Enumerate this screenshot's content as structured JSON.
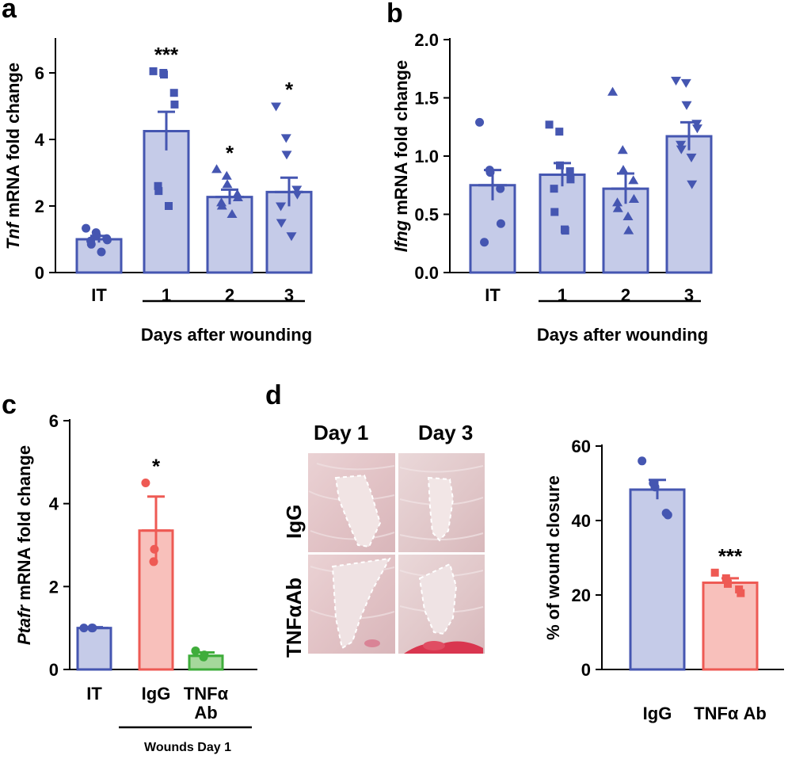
{
  "chart_data": [
    {
      "panel": "a",
      "type": "bar",
      "ylabel_italic": "Tnf",
      "ylabel_rest": " mRNA fold change",
      "categories": [
        "IT",
        "1",
        "2",
        "3"
      ],
      "values": [
        1.0,
        4.25,
        2.27,
        2.42
      ],
      "errors": [
        0.1,
        0.58,
        0.22,
        0.43
      ],
      "points": [
        [
          1.33,
          1.2,
          1.12,
          1.02,
          0.98,
          0.95,
          0.85,
          0.62
        ],
        [
          6.05,
          6.0,
          5.95,
          5.4,
          5.05,
          2.6,
          2.45,
          2.0
        ],
        [
          3.1,
          2.9,
          2.65,
          2.35,
          2.25,
          2.1,
          2.0,
          1.75
        ],
        [
          5.0,
          4.05,
          3.55,
          2.5,
          2.35,
          2.0,
          1.5,
          1.1
        ]
      ],
      "markers": [
        "circle",
        "square",
        "triangle",
        "tri-down"
      ],
      "annotations": [
        "",
        "***",
        "*",
        "*"
      ],
      "yticks": [
        "0",
        "2",
        "4",
        "6"
      ],
      "ylim": [
        0,
        7
      ],
      "group_label": "Days after wounding",
      "color": "#4556b1",
      "fill": "#c5cbe8"
    },
    {
      "panel": "b",
      "type": "bar",
      "ylabel_italic": "Ifng",
      "ylabel_rest": " mRNA fold change",
      "categories": [
        "IT",
        "1",
        "2",
        "3"
      ],
      "values": [
        0.75,
        0.84,
        0.72,
        1.17
      ],
      "errors": [
        0.13,
        0.1,
        0.13,
        0.12
      ],
      "points": [
        [
          1.29,
          0.88,
          0.86,
          0.72,
          0.42,
          0.26
        ],
        [
          1.27,
          1.21,
          0.92,
          0.87,
          0.8,
          0.72,
          0.52,
          0.37,
          0.36
        ],
        [
          1.55,
          1.05,
          0.88,
          0.79,
          0.63,
          0.6,
          0.55,
          0.48,
          0.36
        ],
        [
          1.65,
          1.63,
          1.44,
          1.28,
          1.24,
          1.1,
          1.06,
          0.99,
          0.76
        ]
      ],
      "markers": [
        "circle",
        "square",
        "triangle",
        "tri-down"
      ],
      "annotations": [
        "",
        "",
        "",
        ""
      ],
      "yticks": [
        "0.0",
        "0.5",
        "1.0",
        "1.5",
        "2.0"
      ],
      "ylim": [
        0,
        2
      ],
      "group_label": "Days after wounding",
      "color": "#4556b1",
      "fill": "#c5cbe8"
    },
    {
      "panel": "c",
      "type": "bar",
      "ylabel_italic": "Ptafr",
      "ylabel_rest": " mRNA fold change",
      "categories": [
        "IT",
        "IgG",
        "TNFα|Ab"
      ],
      "values": [
        1.0,
        3.35,
        0.33
      ],
      "errors": [
        0.02,
        0.82,
        0.08
      ],
      "points": [
        [
          1.0,
          1.0,
          1.0
        ],
        [
          4.5,
          2.9,
          2.6
        ],
        [
          0.45,
          0.35,
          0.3
        ]
      ],
      "markers": [
        "circle",
        "circle",
        "circle"
      ],
      "annotations": [
        "",
        "*",
        ""
      ],
      "yticks": [
        "0",
        "2",
        "4",
        "6"
      ],
      "ylim": [
        0,
        6
      ],
      "group_label": "Wounds Day 1",
      "colors": [
        "#4556b1",
        "#ee5a54",
        "#3fad3b"
      ],
      "fills": [
        "#c5cbe8",
        "#f8c0bb",
        "#a5d89b"
      ]
    },
    {
      "panel": "d",
      "type": "bar",
      "ylabel_italic": "",
      "ylabel_rest": "% of wound closure",
      "categories": [
        "IgG",
        "TNFα Ab"
      ],
      "values": [
        48.3,
        23.3
      ],
      "errors": [
        2.6,
        1.2
      ],
      "points": [
        [
          56.0,
          50.0,
          49.0,
          42.0,
          41.5
        ],
        [
          26.0,
          24.5,
          23.0,
          21.5,
          20.5
        ]
      ],
      "markers": [
        "circle",
        "square"
      ],
      "annotations": [
        "",
        "***"
      ],
      "yticks": [
        "0",
        "20",
        "40",
        "60"
      ],
      "ylim": [
        0,
        60
      ],
      "colors": [
        "#4556b1",
        "#ee5a54"
      ],
      "fills": [
        "#c5cbe8",
        "#f8c0bb"
      ]
    }
  ],
  "photos": {
    "columns": [
      "Day 1",
      "Day 3"
    ],
    "rows": [
      "IgG",
      "TNFαAb"
    ]
  }
}
